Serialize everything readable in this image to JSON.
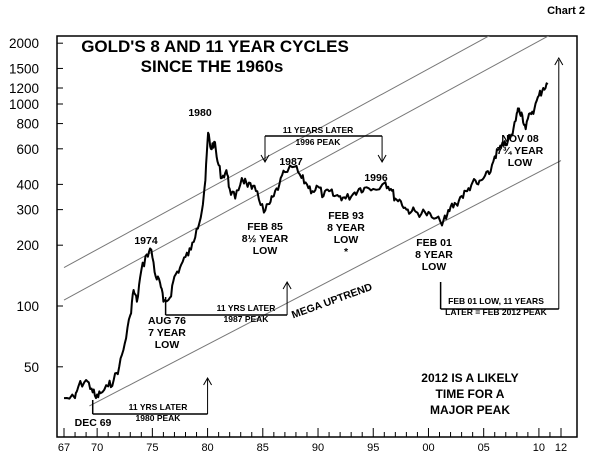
{
  "chart_label": "Chart 2",
  "chart_data": {
    "type": "line",
    "title": "GOLD'S 8 AND 11 YEAR CYCLES",
    "subtitle": "SINCE THE 1960s",
    "xlabel": "",
    "ylabel": "",
    "y_scale": "log",
    "ylim": [
      36,
      2100
    ],
    "xlim": [
      1967,
      2012.6
    ],
    "y_ticks": [
      {
        "value": 50,
        "label": "50"
      },
      {
        "value": 100,
        "label": "100"
      },
      {
        "value": 200,
        "label": "200"
      },
      {
        "value": 300,
        "label": "300"
      },
      {
        "value": 400,
        "label": "400"
      },
      {
        "value": 600,
        "label": "600"
      },
      {
        "value": 800,
        "label": "800"
      },
      {
        "value": 1000,
        "label": "1000"
      },
      {
        "value": 1200,
        "label": "1200"
      },
      {
        "value": 1500,
        "label": "1500"
      },
      {
        "value": 2000,
        "label": "2000"
      }
    ],
    "x_ticks": [
      {
        "value": 1967,
        "label": "67"
      },
      {
        "value": 1970,
        "label": "70"
      },
      {
        "value": 1975,
        "label": "75"
      },
      {
        "value": 1980,
        "label": "80"
      },
      {
        "value": 1985,
        "label": "85"
      },
      {
        "value": 1990,
        "label": "90"
      },
      {
        "value": 1995,
        "label": "95"
      },
      {
        "value": 2000,
        "label": "00"
      },
      {
        "value": 2005,
        "label": "05"
      },
      {
        "value": 2010,
        "label": "10"
      },
      {
        "value": 2012,
        "label": "12"
      }
    ],
    "series": [
      {
        "name": "",
        "x": [
          1967.0,
          1968.0,
          1968.3,
          1969.0,
          1969.5,
          1969.9,
          1970.3,
          1971.0,
          1971.5,
          1972.0,
          1972.5,
          1973.0,
          1973.3,
          1973.6,
          1974.0,
          1974.5,
          1974.9,
          1975.3,
          1975.7,
          1976.0,
          1976.6,
          1977.0,
          1977.5,
          1978.0,
          1978.5,
          1979.0,
          1979.5,
          1979.8,
          1980.05,
          1980.3,
          1980.6,
          1980.9,
          1981.3,
          1981.7,
          1982.0,
          1982.5,
          1983.1,
          1983.5,
          1984.0,
          1984.5,
          1985.1,
          1985.6,
          1986.0,
          1986.5,
          1987.0,
          1987.9,
          1988.5,
          1989.0,
          1989.5,
          1990.0,
          1990.5,
          1991.0,
          1991.5,
          1992.0,
          1992.5,
          1993.2,
          1993.7,
          1994.2,
          1995.0,
          1996.1,
          1996.6,
          1997.0,
          1997.5,
          1998.0,
          1998.5,
          1999.0,
          1999.7,
          2000.3,
          2001.1,
          2001.6,
          2002.0,
          2002.5,
          2003.0,
          2003.5,
          2004.0,
          2004.5,
          2005.0,
          2005.5,
          2006.0,
          2006.4,
          2006.8,
          2007.2,
          2007.6,
          2008.0,
          2008.2,
          2008.5,
          2008.8,
          2009.2,
          2009.6,
          2010.0,
          2010.4,
          2010.8
        ],
        "values": [
          35,
          35,
          40,
          43,
          39,
          35,
          37,
          40,
          43,
          50,
          65,
          90,
          120,
          105,
          150,
          180,
          190,
          140,
          130,
          105,
          110,
          140,
          155,
          175,
          190,
          240,
          300,
          420,
          720,
          600,
          650,
          520,
          430,
          470,
          380,
          340,
          430,
          410,
          380,
          370,
          290,
          320,
          350,
          400,
          460,
          490,
          430,
          400,
          370,
          390,
          350,
          370,
          350,
          350,
          340,
          360,
          380,
          385,
          380,
          410,
          380,
          340,
          330,
          300,
          295,
          290,
          290,
          275,
          260,
          270,
          310,
          320,
          350,
          370,
          410,
          400,
          430,
          450,
          550,
          600,
          620,
          660,
          700,
          900,
          950,
          880,
          750,
          900,
          950,
          1100,
          1200,
          1250
        ]
      }
    ],
    "annotations": [
      {
        "text": "1980",
        "x": 1980.0,
        "y": 730
      },
      {
        "text": "1987",
        "x": 1987.6,
        "y": 495
      },
      {
        "text": "1974",
        "x": 1974.3,
        "y": 195
      },
      {
        "text": "1996",
        "x": 1996.2,
        "y": 420
      },
      {
        "text": "FEB 85\n8½ YEAR\nLOW",
        "x": 1985.3,
        "y": 240
      },
      {
        "text": "FEB 93\n8 YEAR\nLOW\n*",
        "x": 1993.5,
        "y": 250
      },
      {
        "text": "FEB 01\n8 YEAR\nLOW",
        "x": 2001.3,
        "y": 185
      },
      {
        "text": "AUG 76\n7 YEAR\nLOW",
        "x": 1976.5,
        "y": 90
      },
      {
        "text": "DEC 69",
        "x": 1969.6,
        "y": 32
      },
      {
        "text": "NOV 08\n7¾ YEAR\nLOW",
        "x": 2008.5,
        "y": 670
      },
      {
        "text": "11 YEARS LATER\n1996 PEAK",
        "x": 1991.3,
        "y": 790
      },
      {
        "text": "11 YRS LATER\n1987 PEAK",
        "x": 1982.0,
        "y": 105
      },
      {
        "text": "11 YRS LATER\n1980 PEAK",
        "x": 1975.0,
        "y": 33
      },
      {
        "text": "MEGA UPTREND",
        "x": 1990.5,
        "y": 110
      },
      {
        "text": "FEB 01 LOW, 11 YEARS\nLATER = FEB 2012 PEAK",
        "x": 2006.3,
        "y": 101
      },
      {
        "text": "2012 IS A LIKELY\nTIME FOR A\nMAJOR PEAK",
        "x": 2004.0,
        "y": 43
      }
    ],
    "channel_lines": [
      {
        "x": [
          1967,
          2012
        ],
        "y": [
          155,
          3400
        ]
      },
      {
        "x": [
          1967,
          2012
        ],
        "y": [
          107,
          2350
        ]
      },
      {
        "x": [
          1969.3,
          2012
        ],
        "y": [
          32,
          525
        ]
      }
    ]
  }
}
